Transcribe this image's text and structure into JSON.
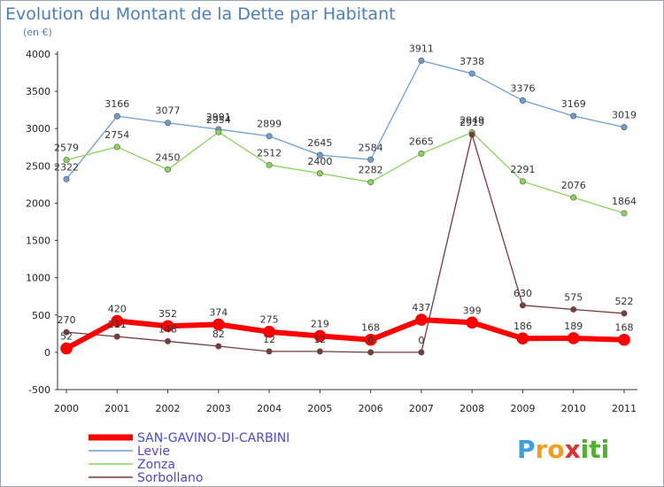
{
  "chart_data": {
    "type": "line",
    "title": "Evolution du Montant de la Dette par Habitant",
    "subtitle": "(en €)",
    "x": [
      "2000",
      "2001",
      "2002",
      "2003",
      "2004",
      "2005",
      "2006",
      "2007",
      "2008",
      "2009",
      "2010",
      "2011"
    ],
    "ylim": [
      -500,
      4000
    ],
    "yticks": [
      -500,
      0,
      500,
      1000,
      1500,
      2000,
      2500,
      3000,
      3500,
      4000
    ],
    "grid": false,
    "legend_position": "bottom-left",
    "series": [
      {
        "name": "SAN-GAVINO-DI-CARBINI",
        "color": "#ff0000",
        "values": [
          52,
          420,
          352,
          374,
          275,
          219,
          168,
          437,
          399,
          186,
          189,
          168
        ]
      },
      {
        "name": "Levie",
        "color": "#6a9fd6",
        "values": [
          2322,
          3166,
          3077,
          2991,
          2899,
          2645,
          2584,
          3911,
          3738,
          3376,
          3169,
          3019
        ]
      },
      {
        "name": "Zonza",
        "color": "#8ad45a",
        "values": [
          2579,
          2754,
          2450,
          2954,
          2512,
          2400,
          2282,
          2665,
          2949,
          2291,
          2076,
          1864
        ]
      },
      {
        "name": "Sorbollano",
        "color": "#7a3a3a",
        "values": [
          270,
          211,
          148,
          82,
          12,
          12,
          0,
          0,
          2919,
          630,
          575,
          522
        ]
      }
    ]
  },
  "logo": {
    "text_p": "P",
    "text_ro": "ro",
    "text_x": "x",
    "text_iti": "iti"
  }
}
